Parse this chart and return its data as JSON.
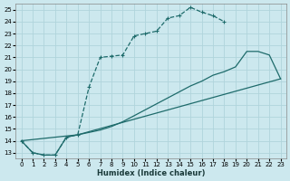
{
  "xlabel": "Humidex (Indice chaleur)",
  "bg_color": "#cce8ee",
  "grid_color": "#b0d4dc",
  "line_color": "#1e6b6b",
  "xlim": [
    -0.5,
    23.5
  ],
  "ylim": [
    12.5,
    25.5
  ],
  "xticks": [
    0,
    1,
    2,
    3,
    4,
    5,
    6,
    7,
    8,
    9,
    10,
    11,
    12,
    13,
    14,
    15,
    16,
    17,
    18,
    19,
    20,
    21,
    22,
    23
  ],
  "yticks": [
    13,
    14,
    15,
    16,
    17,
    18,
    19,
    20,
    21,
    22,
    23,
    24,
    25
  ],
  "line1_x": [
    0,
    1,
    2,
    3,
    4,
    5,
    6,
    7,
    8,
    9,
    10,
    11,
    12,
    13,
    14,
    15,
    16,
    17,
    18
  ],
  "line1_y": [
    14,
    13,
    12.8,
    12.8,
    14.3,
    14.5,
    18.5,
    21.0,
    21.1,
    21.2,
    22.8,
    23.0,
    23.2,
    24.3,
    24.5,
    25.2,
    24.8,
    24.5,
    24.0
  ],
  "line2_x": [
    0,
    1,
    2,
    3,
    4,
    5,
    6,
    7,
    8,
    9,
    10,
    11,
    12,
    13,
    14,
    15,
    16,
    17,
    18,
    19,
    20,
    21,
    22,
    23
  ],
  "line2_y": [
    14,
    13,
    12.8,
    12.8,
    14.3,
    14.5,
    14.7,
    14.9,
    15.2,
    15.6,
    16.1,
    16.6,
    17.1,
    17.6,
    18.1,
    18.6,
    19.0,
    19.5,
    19.8,
    20.2,
    21.5,
    21.5,
    21.2,
    19.2
  ],
  "line3_x": [
    0,
    5,
    23
  ],
  "line3_y": [
    14,
    14.5,
    19.2
  ]
}
